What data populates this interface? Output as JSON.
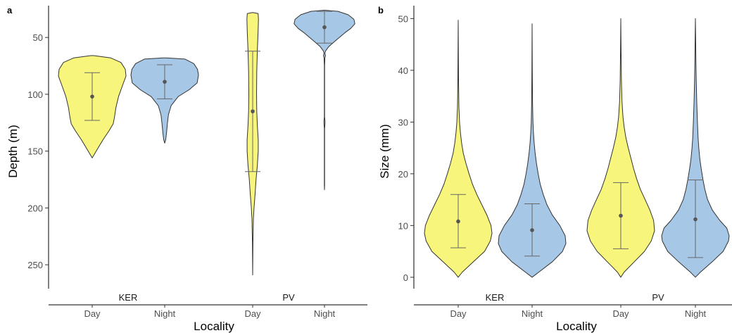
{
  "chart_data": [
    {
      "type": "violin",
      "panel_label": "a",
      "xlabel": "Locality",
      "ylabel": "Depth (m)",
      "y_reversed": true,
      "yticks": [
        50,
        100,
        150,
        200,
        250
      ],
      "ylim": [
        22,
        271
      ],
      "groups": [
        {
          "label": "KER",
          "categories": [
            "Day",
            "Night"
          ]
        },
        {
          "label": "PV",
          "categories": [
            "Day",
            "Night"
          ]
        }
      ],
      "violins": [
        {
          "group": "KER",
          "category": "Day",
          "fill": "#F8F57C",
          "mean": 102,
          "err_low": 81,
          "err_high": 123,
          "profile": [
            [
              66,
              0.05
            ],
            [
              68,
              0.55
            ],
            [
              72,
              0.85
            ],
            [
              78,
              0.98
            ],
            [
              84,
              1.0
            ],
            [
              92,
              0.9
            ],
            [
              102,
              0.78
            ],
            [
              112,
              0.7
            ],
            [
              120,
              0.66
            ],
            [
              126,
              0.62
            ],
            [
              132,
              0.5
            ],
            [
              140,
              0.32
            ],
            [
              147,
              0.18
            ],
            [
              152,
              0.08
            ],
            [
              156,
              0.0
            ]
          ]
        },
        {
          "group": "KER",
          "category": "Night",
          "fill": "#A6C8E6",
          "mean": 89,
          "err_low": 74,
          "err_high": 104,
          "profile": [
            [
              68,
              0.05
            ],
            [
              69,
              0.6
            ],
            [
              73,
              0.86
            ],
            [
              78,
              0.97
            ],
            [
              83,
              1.0
            ],
            [
              90,
              0.96
            ],
            [
              96,
              0.72
            ],
            [
              102,
              0.4
            ],
            [
              110,
              0.19
            ],
            [
              118,
              0.11
            ],
            [
              126,
              0.08
            ],
            [
              134,
              0.055
            ],
            [
              140,
              0.03
            ],
            [
              143,
              0.0
            ]
          ]
        },
        {
          "group": "PV",
          "category": "Day",
          "fill": "#F8F57C",
          "mean": 115,
          "err_low": 62,
          "err_high": 168,
          "profile": [
            [
              28,
              0.0
            ],
            [
              29,
              0.16
            ],
            [
              34,
              0.17
            ],
            [
              45,
              0.16
            ],
            [
              60,
              0.14
            ],
            [
              80,
              0.12
            ],
            [
              100,
              0.115
            ],
            [
              115,
              0.12
            ],
            [
              128,
              0.14
            ],
            [
              140,
              0.165
            ],
            [
              150,
              0.165
            ],
            [
              162,
              0.14
            ],
            [
              175,
              0.1
            ],
            [
              188,
              0.07
            ],
            [
              200,
              0.04
            ],
            [
              210,
              0.02
            ],
            [
              230,
              0.008
            ],
            [
              259,
              0.0
            ]
          ]
        },
        {
          "group": "PV",
          "category": "Night",
          "fill": "#A6C8E6",
          "mean": 41,
          "err_low": 27,
          "err_high": 55,
          "profile": [
            [
              26,
              0.0
            ],
            [
              27,
              0.4
            ],
            [
              30,
              0.7
            ],
            [
              34,
              0.87
            ],
            [
              38,
              0.9
            ],
            [
              42,
              0.78
            ],
            [
              46,
              0.6
            ],
            [
              50,
              0.44
            ],
            [
              54,
              0.28
            ],
            [
              58,
              0.13
            ],
            [
              62,
              0.03
            ],
            [
              64,
              0.012
            ],
            [
              66,
              0.03
            ],
            [
              68,
              0.012
            ],
            [
              75,
              0.005
            ],
            [
              120,
              0.005
            ],
            [
              123,
              0.015
            ],
            [
              126,
              0.015
            ],
            [
              130,
              0.005
            ],
            [
              180,
              0.004
            ],
            [
              184,
              0.0
            ]
          ]
        }
      ]
    },
    {
      "type": "violin",
      "panel_label": "b",
      "xlabel": "Locality",
      "ylabel": "Size (mm)",
      "y_reversed": false,
      "yticks": [
        0,
        10,
        20,
        30,
        40,
        50
      ],
      "ylim": [
        -2.2,
        52.5
      ],
      "groups": [
        {
          "label": "KER",
          "categories": [
            "Day",
            "Night"
          ]
        },
        {
          "label": "PV",
          "categories": [
            "Day",
            "Night"
          ]
        }
      ],
      "violins": [
        {
          "group": "KER",
          "category": "Day",
          "fill": "#F8F57C",
          "mean": 10.8,
          "err_low": 5.7,
          "err_high": 16.0,
          "profile": [
            [
              0,
              0.0
            ],
            [
              1,
              0.12
            ],
            [
              3,
              0.45
            ],
            [
              5,
              0.78
            ],
            [
              7,
              0.95
            ],
            [
              8.5,
              1.0
            ],
            [
              10,
              0.97
            ],
            [
              12,
              0.85
            ],
            [
              14,
              0.7
            ],
            [
              16,
              0.55
            ],
            [
              18,
              0.42
            ],
            [
              20,
              0.32
            ],
            [
              22,
              0.23
            ],
            [
              24,
              0.15
            ],
            [
              26,
              0.1
            ],
            [
              28,
              0.065
            ],
            [
              30,
              0.04
            ],
            [
              33,
              0.02
            ],
            [
              38,
              0.01
            ],
            [
              45,
              0.004
            ],
            [
              49.7,
              0.0
            ]
          ]
        },
        {
          "group": "KER",
          "category": "Night",
          "fill": "#A6C8E6",
          "mean": 9.1,
          "err_low": 4.1,
          "err_high": 14.2,
          "profile": [
            [
              0,
              0.0
            ],
            [
              1,
              0.2
            ],
            [
              3,
              0.6
            ],
            [
              5,
              0.9
            ],
            [
              6.5,
              1.0
            ],
            [
              8,
              0.98
            ],
            [
              10,
              0.82
            ],
            [
              12,
              0.6
            ],
            [
              14,
              0.44
            ],
            [
              16,
              0.33
            ],
            [
              18,
              0.24
            ],
            [
              20,
              0.18
            ],
            [
              22,
              0.13
            ],
            [
              24,
              0.09
            ],
            [
              26,
              0.06
            ],
            [
              28,
              0.04
            ],
            [
              30,
              0.025
            ],
            [
              34,
              0.012
            ],
            [
              40,
              0.006
            ],
            [
              49,
              0.0
            ]
          ]
        },
        {
          "group": "PV",
          "category": "Day",
          "fill": "#F8F57C",
          "mean": 11.9,
          "err_low": 5.5,
          "err_high": 18.3,
          "profile": [
            [
              0,
              0.0
            ],
            [
              1,
              0.1
            ],
            [
              3,
              0.4
            ],
            [
              5,
              0.7
            ],
            [
              7,
              0.9
            ],
            [
              9,
              1.0
            ],
            [
              11,
              0.97
            ],
            [
              13,
              0.86
            ],
            [
              15,
              0.72
            ],
            [
              17,
              0.58
            ],
            [
              19,
              0.47
            ],
            [
              21,
              0.38
            ],
            [
              23,
              0.3
            ],
            [
              25,
              0.22
            ],
            [
              27,
              0.15
            ],
            [
              29,
              0.1
            ],
            [
              31,
              0.065
            ],
            [
              34,
              0.035
            ],
            [
              38,
              0.018
            ],
            [
              44,
              0.008
            ],
            [
              50,
              0.0
            ]
          ]
        },
        {
          "group": "PV",
          "category": "Night",
          "fill": "#A6C8E6",
          "mean": 11.2,
          "err_low": 3.8,
          "err_high": 18.8,
          "profile": [
            [
              0,
              0.0
            ],
            [
              1,
              0.15
            ],
            [
              3,
              0.5
            ],
            [
              5,
              0.82
            ],
            [
              7,
              0.98
            ],
            [
              8,
              1.0
            ],
            [
              9.5,
              0.93
            ],
            [
              11,
              0.72
            ],
            [
              13,
              0.5
            ],
            [
              15,
              0.36
            ],
            [
              17,
              0.28
            ],
            [
              19,
              0.22
            ],
            [
              21,
              0.17
            ],
            [
              23,
              0.13
            ],
            [
              25,
              0.1
            ],
            [
              27,
              0.08
            ],
            [
              30,
              0.06
            ],
            [
              34,
              0.04
            ],
            [
              38,
              0.025
            ],
            [
              42,
              0.015
            ],
            [
              46,
              0.008
            ],
            [
              50,
              0.0
            ]
          ]
        }
      ]
    }
  ]
}
